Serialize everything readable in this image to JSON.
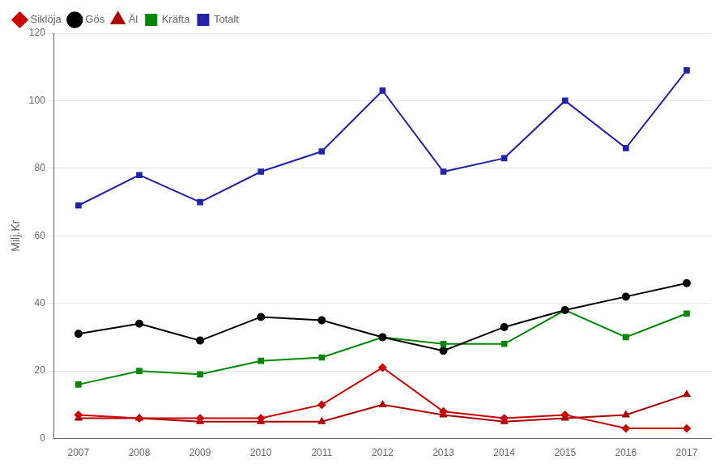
{
  "chart_data": {
    "type": "line",
    "ylabel": "Milj.Kr",
    "x": [
      2007,
      2008,
      2009,
      2010,
      2011,
      2012,
      2013,
      2014,
      2015,
      2016,
      2017
    ],
    "series": [
      {
        "name": "Siklöja",
        "color": "#cc0000",
        "marker": "diamond",
        "values": [
          7,
          6,
          6,
          6,
          10,
          21,
          8,
          6,
          7,
          3,
          3
        ]
      },
      {
        "name": "Gös",
        "color": "#000000",
        "marker": "circle",
        "values": [
          31,
          34,
          29,
          36,
          35,
          30,
          26,
          33,
          38,
          42,
          46
        ]
      },
      {
        "name": "Äl",
        "color": "#aa0000",
        "marker": "triangle",
        "values": [
          6,
          6,
          5,
          5,
          5,
          10,
          7,
          5,
          6,
          7,
          13
        ]
      },
      {
        "name": "Kräfta",
        "color": "#008800",
        "marker": "square",
        "values": [
          16,
          20,
          19,
          23,
          24,
          30,
          28,
          28,
          38,
          30,
          37
        ]
      },
      {
        "name": "Totalt",
        "color": "#2222aa",
        "marker": "square",
        "values": [
          69,
          78,
          70,
          79,
          85,
          103,
          79,
          83,
          100,
          86,
          109
        ]
      }
    ],
    "xlim": [
      2006.6,
      2017.4
    ],
    "xticks": [
      2007,
      2008,
      2009,
      2010,
      2011,
      2012,
      2013,
      2014,
      2015,
      2016,
      2017
    ],
    "ylim": [
      0,
      120
    ],
    "yticks": [
      0,
      20,
      40,
      60,
      80,
      100,
      120
    ],
    "grid": "y",
    "legend": "upper left"
  }
}
